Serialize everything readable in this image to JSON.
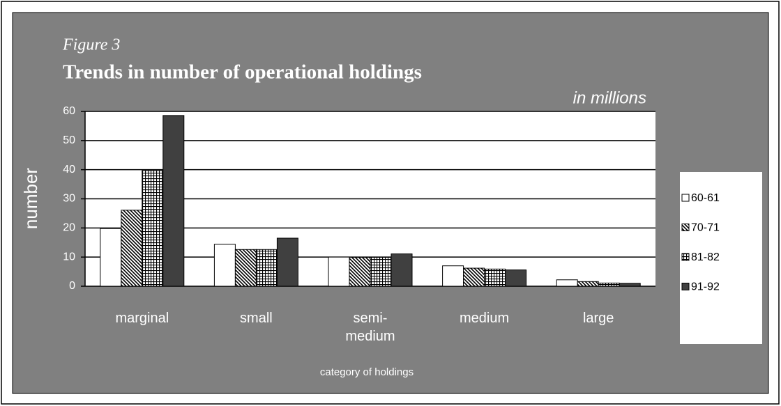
{
  "chart_data": {
    "type": "bar",
    "subtitle": "Figure 3",
    "title": "Trends in number of operational holdings",
    "unit_note": "in millions",
    "y_label": "number",
    "x_label": "category of holdings",
    "categories": [
      "marginal",
      "small",
      "semi-medium",
      "medium",
      "large"
    ],
    "series": [
      {
        "name": "60-61",
        "color": "#ffffff",
        "pattern": "none",
        "values": [
          19.8,
          14.4,
          10.0,
          7.0,
          2.2
        ]
      },
      {
        "name": "70-71",
        "color": "#8a8a8a",
        "pattern": "diagonal",
        "values": [
          26.1,
          12.6,
          9.9,
          6.2,
          1.6
        ]
      },
      {
        "name": "81-82",
        "color": "#9a9a9a",
        "pattern": "grid",
        "values": [
          39.7,
          12.6,
          9.9,
          5.9,
          1.1
        ]
      },
      {
        "name": "91-92",
        "color": "#404040",
        "pattern": "none",
        "values": [
          58.6,
          16.5,
          11.1,
          5.6,
          1.0
        ]
      }
    ],
    "ylim": [
      0,
      60
    ],
    "yticks": [
      0,
      10,
      20,
      30,
      40,
      50,
      60
    ],
    "grid": true,
    "legend": "right"
  }
}
